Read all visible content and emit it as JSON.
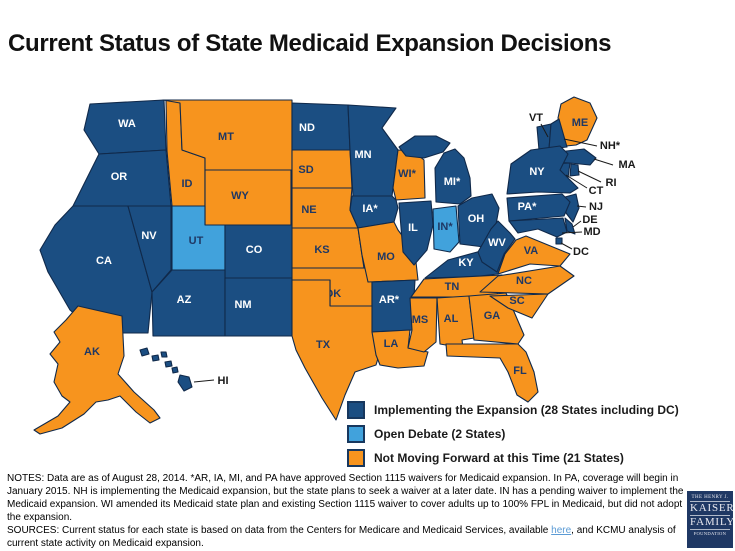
{
  "title": "Current Status of State Medicaid Expansion Decisions",
  "legend": {
    "items": [
      {
        "label": "Implementing the Expansion (28 States including DC)",
        "status": "expansion",
        "color": "#1B4E82"
      },
      {
        "label": "Open Debate (2 States)",
        "status": "open_debate",
        "color": "#41A2DC"
      },
      {
        "label": "Not Moving Forward at this Time (21 States)",
        "status": "not_moving",
        "color": "#F7941E"
      }
    ]
  },
  "map": {
    "status_colors": {
      "expansion": "#1B4E82",
      "open_debate": "#41A2DC",
      "not_moving": "#F7941E"
    },
    "states": [
      {
        "id": "WA",
        "label": "WA",
        "status": "expansion"
      },
      {
        "id": "OR",
        "label": "OR",
        "status": "expansion"
      },
      {
        "id": "CA",
        "label": "CA",
        "status": "expansion"
      },
      {
        "id": "NV",
        "label": "NV",
        "status": "expansion"
      },
      {
        "id": "ID",
        "label": "ID",
        "status": "not_moving"
      },
      {
        "id": "MT",
        "label": "MT",
        "status": "not_moving"
      },
      {
        "id": "WY",
        "label": "WY",
        "status": "not_moving"
      },
      {
        "id": "UT",
        "label": "UT",
        "status": "open_debate"
      },
      {
        "id": "CO",
        "label": "CO",
        "status": "expansion"
      },
      {
        "id": "AZ",
        "label": "AZ",
        "status": "expansion"
      },
      {
        "id": "NM",
        "label": "NM",
        "status": "expansion"
      },
      {
        "id": "AK",
        "label": "AK",
        "status": "not_moving"
      },
      {
        "id": "HI",
        "label": "HI",
        "status": "expansion"
      },
      {
        "id": "ND",
        "label": "ND",
        "status": "expansion"
      },
      {
        "id": "SD",
        "label": "SD",
        "status": "not_moving"
      },
      {
        "id": "NE",
        "label": "NE",
        "status": "not_moving"
      },
      {
        "id": "KS",
        "label": "KS",
        "status": "not_moving"
      },
      {
        "id": "OK",
        "label": "OK",
        "status": "not_moving"
      },
      {
        "id": "TX",
        "label": "TX",
        "status": "not_moving"
      },
      {
        "id": "MN",
        "label": "MN",
        "status": "expansion"
      },
      {
        "id": "IA",
        "label": "IA*",
        "status": "expansion"
      },
      {
        "id": "MO",
        "label": "MO",
        "status": "not_moving"
      },
      {
        "id": "AR",
        "label": "AR*",
        "status": "expansion"
      },
      {
        "id": "LA",
        "label": "LA",
        "status": "not_moving"
      },
      {
        "id": "WI",
        "label": "WI*",
        "status": "not_moving"
      },
      {
        "id": "IL",
        "label": "IL",
        "status": "expansion"
      },
      {
        "id": "MS",
        "label": "MS",
        "status": "not_moving"
      },
      {
        "id": "MI",
        "label": "MI*",
        "status": "expansion"
      },
      {
        "id": "IN",
        "label": "IN*",
        "status": "open_debate"
      },
      {
        "id": "OH",
        "label": "OH",
        "status": "expansion"
      },
      {
        "id": "KY",
        "label": "KY",
        "status": "expansion"
      },
      {
        "id": "TN",
        "label": "TN",
        "status": "not_moving"
      },
      {
        "id": "AL",
        "label": "AL",
        "status": "not_moving"
      },
      {
        "id": "GA",
        "label": "GA",
        "status": "not_moving"
      },
      {
        "id": "FL",
        "label": "FL",
        "status": "not_moving"
      },
      {
        "id": "SC",
        "label": "SC",
        "status": "not_moving"
      },
      {
        "id": "NC",
        "label": "NC",
        "status": "not_moving"
      },
      {
        "id": "VA",
        "label": "VA",
        "status": "not_moving"
      },
      {
        "id": "WV",
        "label": "WV",
        "status": "expansion"
      },
      {
        "id": "ME",
        "label": "ME",
        "status": "not_moving"
      },
      {
        "id": "VT",
        "label": "VT",
        "status": "expansion"
      },
      {
        "id": "NH",
        "label": "NH*",
        "status": "expansion"
      },
      {
        "id": "MA",
        "label": "MA",
        "status": "expansion"
      },
      {
        "id": "RI",
        "label": "RI",
        "status": "expansion"
      },
      {
        "id": "CT",
        "label": "CT",
        "status": "expansion"
      },
      {
        "id": "NY",
        "label": "NY",
        "status": "expansion"
      },
      {
        "id": "NJ",
        "label": "NJ",
        "status": "expansion"
      },
      {
        "id": "PA",
        "label": "PA*",
        "status": "expansion"
      },
      {
        "id": "DE",
        "label": "DE",
        "status": "expansion"
      },
      {
        "id": "MD",
        "label": "MD",
        "status": "expansion"
      },
      {
        "id": "DC",
        "label": "DC",
        "status": "expansion"
      }
    ]
  },
  "notes": "NOTES: Data are as of August 28, 2014. *AR, IA, MI, and PA have approved Section 1115 waivers for Medicaid expansion.  In PA, coverage will begin in January 2015. NH is implementing the Medicaid expansion, but the state plans to seek a waiver at a later date.  IN has a pending waiver to implement the Medicaid expansion.  WI amended its Medicaid state plan and existing Section 1115 waiver to cover adults up to 100% FPL in Medicaid, but did not adopt the expansion.",
  "sources": {
    "prefix": "SOURCES: Current status for each state is based on data from the Centers for Medicare and Medicaid Services, available ",
    "link_text": "here",
    "suffix": ", and KCMU analysis of current state activity on Medicaid expansion."
  },
  "logo": {
    "line1": "THE HENRY J.",
    "line2": "KAISER",
    "line3": "FAMILY",
    "line4": "FOUNDATION"
  }
}
